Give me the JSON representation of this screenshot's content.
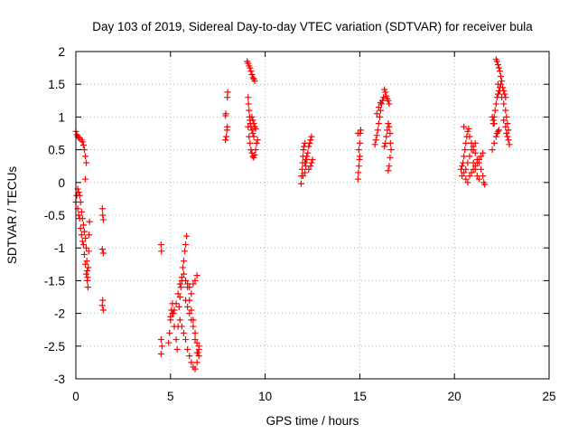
{
  "chart_data": {
    "type": "scatter",
    "title": "Day 103 of 2019, Sidereal Day-to-day VTEC variation (SDTVAR) for receiver bula",
    "xlabel": "GPS time / hours",
    "ylabel": "SDTVAR / TECUs",
    "xlim": [
      0,
      25
    ],
    "ylim": [
      -3,
      2
    ],
    "xticks": [
      0,
      5,
      10,
      15,
      20,
      25
    ],
    "xtick_labels": [
      "0",
      "5",
      "10",
      "15",
      "20",
      "25"
    ],
    "yticks": [
      2,
      1.5,
      1,
      0.5,
      0,
      -0.5,
      -1,
      -1.5,
      -2,
      -2.5,
      -3
    ],
    "ytick_labels": [
      "2",
      "1.5",
      "1",
      "0.5",
      "0",
      "-0.5",
      "-1",
      "-1.5",
      "-2",
      "-2.5",
      "-3"
    ],
    "grid": true,
    "marker": "plus",
    "color": "#ff0000",
    "series": [
      {
        "name": "SDTVAR",
        "points": [
          [
            0.0,
            0.78
          ],
          [
            0.05,
            0.73
          ],
          [
            0.1,
            0.7
          ],
          [
            0.15,
            0.68
          ],
          [
            0.2,
            0.68
          ],
          [
            0.3,
            0.65
          ],
          [
            0.35,
            0.62
          ],
          [
            0.4,
            0.57
          ],
          [
            0.45,
            0.5
          ],
          [
            0.5,
            0.4
          ],
          [
            0.55,
            0.3
          ],
          [
            0.5,
            0.05
          ],
          [
            0.0,
            -0.3
          ],
          [
            0.05,
            -0.2
          ],
          [
            0.1,
            -0.1
          ],
          [
            0.15,
            -0.15
          ],
          [
            0.2,
            -0.2
          ],
          [
            0.25,
            -0.3
          ],
          [
            0.3,
            -0.45
          ],
          [
            0.35,
            -0.55
          ],
          [
            0.4,
            -0.65
          ],
          [
            0.45,
            -0.75
          ],
          [
            0.5,
            -0.85
          ],
          [
            0.55,
            -1.0
          ],
          [
            0.58,
            -1.2
          ],
          [
            0.6,
            -1.35
          ],
          [
            0.62,
            -1.45
          ],
          [
            0.64,
            -1.6
          ],
          [
            0.66,
            -1.3
          ],
          [
            0.68,
            -1.05
          ],
          [
            0.7,
            -0.8
          ],
          [
            0.72,
            -0.6
          ],
          [
            0.1,
            -0.4
          ],
          [
            0.15,
            -0.5
          ],
          [
            0.2,
            -0.55
          ],
          [
            0.25,
            -0.7
          ],
          [
            0.3,
            -0.8
          ],
          [
            0.35,
            -0.9
          ],
          [
            0.4,
            -0.95
          ],
          [
            0.45,
            -1.1
          ],
          [
            0.5,
            -1.25
          ],
          [
            0.55,
            -1.4
          ],
          [
            0.6,
            -1.5
          ],
          [
            1.4,
            -0.4
          ],
          [
            1.42,
            -0.5
          ],
          [
            1.45,
            -0.57
          ],
          [
            1.4,
            -1.02
          ],
          [
            1.45,
            -1.08
          ],
          [
            1.42,
            -1.8
          ],
          [
            1.4,
            -1.88
          ],
          [
            1.45,
            -1.95
          ],
          [
            4.5,
            -0.95
          ],
          [
            4.52,
            -1.05
          ],
          [
            4.5,
            -2.4
          ],
          [
            4.55,
            -2.5
          ],
          [
            4.5,
            -2.62
          ],
          [
            4.9,
            -2.45
          ],
          [
            4.95,
            -2.3
          ],
          [
            5.0,
            -2.1
          ],
          [
            5.05,
            -1.95
          ],
          [
            5.1,
            -1.85
          ],
          [
            5.15,
            -2.0
          ],
          [
            5.2,
            -2.2
          ],
          [
            5.3,
            -2.4
          ],
          [
            5.35,
            -2.55
          ],
          [
            5.4,
            -2.2
          ],
          [
            5.45,
            -1.9
          ],
          [
            5.5,
            -1.75
          ],
          [
            5.55,
            -1.6
          ],
          [
            5.6,
            -1.45
          ],
          [
            5.65,
            -1.3
          ],
          [
            5.7,
            -1.2
          ],
          [
            5.75,
            -1.05
          ],
          [
            5.8,
            -0.95
          ],
          [
            5.85,
            -0.82
          ],
          [
            5.0,
            -2.05
          ],
          [
            5.1,
            -2.0
          ],
          [
            5.2,
            -1.95
          ],
          [
            5.3,
            -1.85
          ],
          [
            5.4,
            -1.7
          ],
          [
            5.5,
            -1.55
          ],
          [
            5.6,
            -1.5
          ],
          [
            5.7,
            -1.4
          ],
          [
            5.8,
            -1.5
          ],
          [
            5.9,
            -1.55
          ],
          [
            6.0,
            -1.6
          ],
          [
            6.1,
            -1.7
          ],
          [
            6.2,
            -1.55
          ],
          [
            6.3,
            -1.5
          ],
          [
            6.4,
            -1.42
          ],
          [
            5.5,
            -2.1
          ],
          [
            5.6,
            -2.2
          ],
          [
            5.7,
            -2.3
          ],
          [
            5.8,
            -2.4
          ],
          [
            5.9,
            -2.55
          ],
          [
            6.0,
            -2.65
          ],
          [
            6.1,
            -2.75
          ],
          [
            6.2,
            -2.82
          ],
          [
            6.3,
            -2.85
          ],
          [
            6.4,
            -2.75
          ],
          [
            6.45,
            -2.6
          ],
          [
            6.5,
            -2.5
          ],
          [
            5.8,
            -1.8
          ],
          [
            5.9,
            -1.9
          ],
          [
            6.0,
            -2.0
          ],
          [
            6.1,
            -2.1
          ],
          [
            6.2,
            -2.2
          ],
          [
            6.3,
            -2.3
          ],
          [
            6.4,
            -2.45
          ],
          [
            6.5,
            -2.55
          ],
          [
            5.9,
            -1.6
          ],
          [
            6.0,
            -1.8
          ],
          [
            6.1,
            -1.95
          ],
          [
            6.2,
            -2.1
          ],
          [
            6.3,
            -2.4
          ],
          [
            6.4,
            -2.6
          ],
          [
            6.5,
            -2.65
          ],
          [
            7.9,
            1.02
          ],
          [
            7.92,
            1.05
          ],
          [
            8.0,
            1.3
          ],
          [
            8.02,
            1.38
          ],
          [
            7.95,
            0.7
          ],
          [
            7.98,
            0.8
          ],
          [
            8.0,
            0.85
          ],
          [
            7.9,
            0.65
          ],
          [
            9.05,
            1.85
          ],
          [
            9.1,
            1.82
          ],
          [
            9.15,
            1.78
          ],
          [
            9.2,
            1.75
          ],
          [
            9.25,
            1.7
          ],
          [
            9.3,
            1.65
          ],
          [
            9.35,
            1.6
          ],
          [
            9.4,
            1.58
          ],
          [
            9.45,
            1.55
          ],
          [
            9.1,
            1.3
          ],
          [
            9.12,
            1.2
          ],
          [
            9.15,
            1.1
          ],
          [
            9.18,
            1.0
          ],
          [
            9.2,
            0.95
          ],
          [
            9.22,
            0.9
          ],
          [
            9.25,
            0.85
          ],
          [
            9.3,
            0.8
          ],
          [
            9.35,
            0.75
          ],
          [
            9.4,
            0.7
          ],
          [
            9.1,
            0.85
          ],
          [
            9.15,
            0.7
          ],
          [
            9.2,
            0.6
          ],
          [
            9.25,
            0.5
          ],
          [
            9.3,
            0.45
          ],
          [
            9.35,
            0.4
          ],
          [
            9.4,
            0.38
          ],
          [
            9.45,
            0.42
          ],
          [
            9.5,
            0.5
          ],
          [
            9.55,
            0.6
          ],
          [
            9.6,
            0.65
          ],
          [
            9.3,
            1.0
          ],
          [
            9.35,
            0.95
          ],
          [
            9.4,
            0.9
          ],
          [
            9.45,
            0.85
          ],
          [
            9.5,
            0.82
          ],
          [
            11.9,
            -0.02
          ],
          [
            11.92,
            0.1
          ],
          [
            11.95,
            0.2
          ],
          [
            11.98,
            0.3
          ],
          [
            12.0,
            0.4
          ],
          [
            12.02,
            0.5
          ],
          [
            12.05,
            0.55
          ],
          [
            12.1,
            0.6
          ],
          [
            12.0,
            0.1
          ],
          [
            12.1,
            0.15
          ],
          [
            12.15,
            0.25
          ],
          [
            12.2,
            0.35
          ],
          [
            12.25,
            0.45
          ],
          [
            12.3,
            0.55
          ],
          [
            12.35,
            0.6
          ],
          [
            12.4,
            0.65
          ],
          [
            12.45,
            0.7
          ],
          [
            12.1,
            0.3
          ],
          [
            12.15,
            0.35
          ],
          [
            12.2,
            0.4
          ],
          [
            12.3,
            0.2
          ],
          [
            12.4,
            0.25
          ],
          [
            12.45,
            0.3
          ],
          [
            12.5,
            0.35
          ],
          [
            14.9,
            0.05
          ],
          [
            14.92,
            0.15
          ],
          [
            14.95,
            0.25
          ],
          [
            14.98,
            0.35
          ],
          [
            15.0,
            0.4
          ],
          [
            14.95,
            0.5
          ],
          [
            15.0,
            0.6
          ],
          [
            15.02,
            0.75
          ],
          [
            15.05,
            0.8
          ],
          [
            14.9,
            0.75
          ],
          [
            15.8,
            0.58
          ],
          [
            15.85,
            0.65
          ],
          [
            15.9,
            0.72
          ],
          [
            15.95,
            0.8
          ],
          [
            16.0,
            0.9
          ],
          [
            16.05,
            1.0
          ],
          [
            16.1,
            1.1
          ],
          [
            16.15,
            1.2
          ],
          [
            16.2,
            1.25
          ],
          [
            16.25,
            1.3
          ],
          [
            15.9,
            1.05
          ],
          [
            16.0,
            1.15
          ],
          [
            16.1,
            1.22
          ],
          [
            16.3,
            1.42
          ],
          [
            16.35,
            1.38
          ],
          [
            16.4,
            1.32
          ],
          [
            16.45,
            1.28
          ],
          [
            16.5,
            1.25
          ],
          [
            16.55,
            1.2
          ],
          [
            16.3,
            0.55
          ],
          [
            16.35,
            0.6
          ],
          [
            16.4,
            0.7
          ],
          [
            16.45,
            0.8
          ],
          [
            16.5,
            0.9
          ],
          [
            16.55,
            0.85
          ],
          [
            16.6,
            0.75
          ],
          [
            16.62,
            0.6
          ],
          [
            16.65,
            0.5
          ],
          [
            16.6,
            0.38
          ],
          [
            16.55,
            0.25
          ],
          [
            16.5,
            0.18
          ],
          [
            20.35,
            0.2
          ],
          [
            20.4,
            0.25
          ],
          [
            20.45,
            0.3
          ],
          [
            20.5,
            0.4
          ],
          [
            20.55,
            0.5
          ],
          [
            20.6,
            0.6
          ],
          [
            20.65,
            0.7
          ],
          [
            20.7,
            0.78
          ],
          [
            20.75,
            0.82
          ],
          [
            20.5,
            0.85
          ],
          [
            20.4,
            0.1
          ],
          [
            20.5,
            0.15
          ],
          [
            20.6,
            0.2
          ],
          [
            20.7,
            0.3
          ],
          [
            20.8,
            0.4
          ],
          [
            20.9,
            0.5
          ],
          [
            21.0,
            0.55
          ],
          [
            21.1,
            0.6
          ],
          [
            20.6,
            0.05
          ],
          [
            20.7,
            0.0
          ],
          [
            20.8,
            0.1
          ],
          [
            20.9,
            0.15
          ],
          [
            21.0,
            0.2
          ],
          [
            21.1,
            0.25
          ],
          [
            21.2,
            0.3
          ],
          [
            21.3,
            0.35
          ],
          [
            21.4,
            0.4
          ],
          [
            21.5,
            0.45
          ],
          [
            20.8,
            0.7
          ],
          [
            20.9,
            0.6
          ],
          [
            21.0,
            0.5
          ],
          [
            21.1,
            0.45
          ],
          [
            21.2,
            0.35
          ],
          [
            21.3,
            0.3
          ],
          [
            21.4,
            0.2
          ],
          [
            21.5,
            0.1
          ],
          [
            21.55,
            0.0
          ],
          [
            21.6,
            -0.03
          ],
          [
            21.0,
            0.3
          ],
          [
            21.1,
            0.2
          ],
          [
            21.2,
            0.1
          ],
          [
            21.3,
            0.05
          ],
          [
            22.0,
            0.5
          ],
          [
            22.1,
            0.6
          ],
          [
            22.2,
            0.7
          ],
          [
            22.25,
            0.75
          ],
          [
            22.3,
            0.78
          ],
          [
            22.35,
            0.8
          ],
          [
            22.05,
            0.9
          ],
          [
            22.1,
            1.0
          ],
          [
            22.15,
            1.1
          ],
          [
            22.2,
            1.2
          ],
          [
            22.25,
            1.3
          ],
          [
            22.3,
            1.35
          ],
          [
            22.35,
            1.4
          ],
          [
            22.4,
            1.45
          ],
          [
            22.45,
            1.5
          ],
          [
            22.2,
            1.88
          ],
          [
            22.25,
            1.85
          ],
          [
            22.3,
            1.8
          ],
          [
            22.35,
            1.75
          ],
          [
            22.4,
            1.7
          ],
          [
            22.45,
            1.62
          ],
          [
            22.5,
            1.55
          ],
          [
            22.55,
            1.45
          ],
          [
            22.6,
            1.4
          ],
          [
            22.65,
            1.35
          ],
          [
            22.7,
            1.3
          ],
          [
            22.3,
            1.5
          ],
          [
            22.4,
            1.4
          ],
          [
            22.5,
            1.3
          ],
          [
            22.6,
            1.2
          ],
          [
            22.7,
            1.1
          ],
          [
            22.75,
            1.0
          ],
          [
            22.8,
            0.9
          ],
          [
            22.85,
            0.8
          ],
          [
            22.6,
            0.95
          ],
          [
            22.7,
            0.85
          ],
          [
            22.75,
            0.75
          ],
          [
            22.8,
            0.7
          ],
          [
            22.85,
            0.65
          ],
          [
            22.9,
            0.58
          ],
          [
            22.0,
            1.0
          ],
          [
            22.05,
            0.95
          ],
          [
            22.1,
            0.9
          ]
        ]
      }
    ]
  }
}
